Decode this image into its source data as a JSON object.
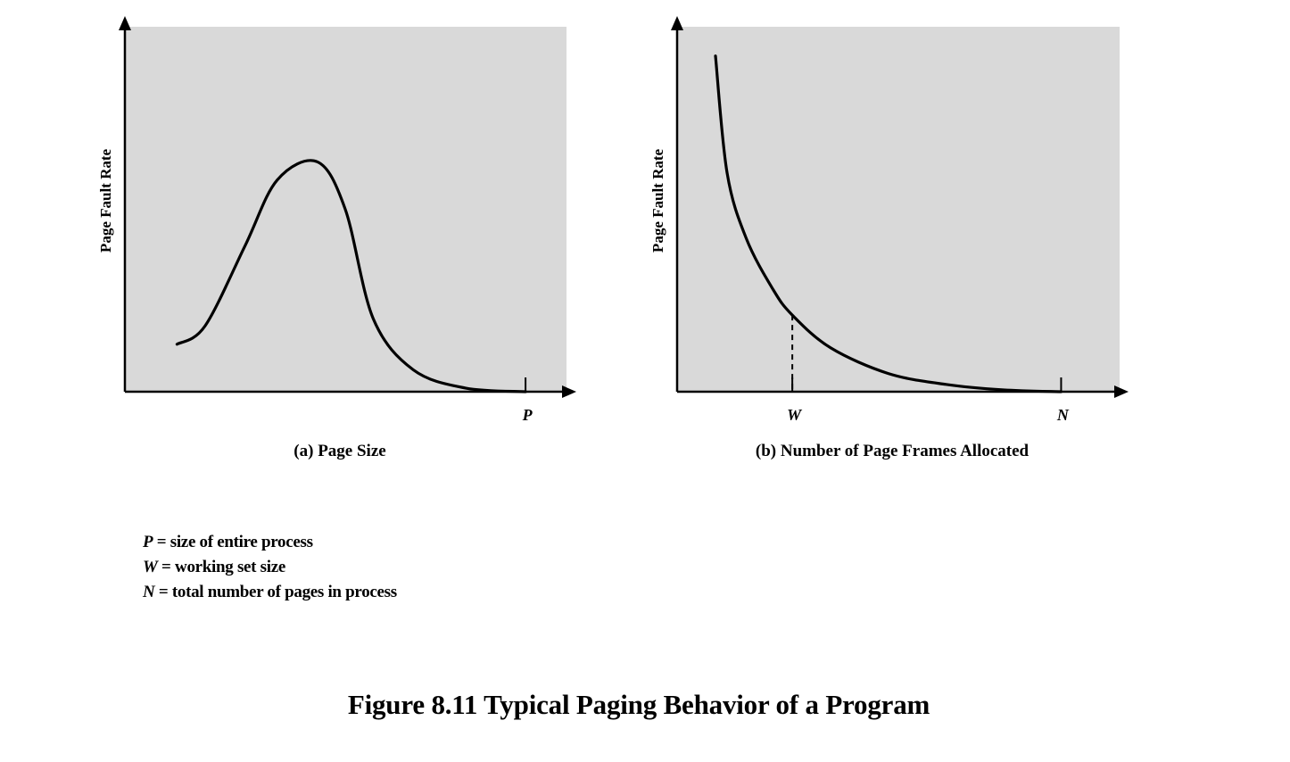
{
  "figure_title": "Figure 8.11  Typical Paging Behavior of a Program",
  "colors": {
    "plot_background": "#d9d9d9",
    "line": "#000000"
  },
  "chart_data": [
    {
      "type": "line",
      "caption": "(a) Page Size",
      "ylabel": "Page Fault Rate",
      "xlabel": "",
      "x_ticks": [
        {
          "label": "P",
          "x": 1.0
        }
      ],
      "xlim": [
        0,
        1.1
      ],
      "ylim": [
        0,
        1
      ],
      "grid": false,
      "series": [
        {
          "points": [
            [
              0.13,
              0.13
            ],
            [
              0.2,
              0.18
            ],
            [
              0.3,
              0.4
            ],
            [
              0.38,
              0.58
            ],
            [
              0.48,
              0.63
            ],
            [
              0.55,
              0.5
            ],
            [
              0.62,
              0.2
            ],
            [
              0.72,
              0.06
            ],
            [
              0.85,
              0.01
            ],
            [
              1.0,
              0.0
            ]
          ]
        }
      ]
    },
    {
      "type": "line",
      "caption": "(b) Number of Page Frames Allocated",
      "ylabel": "Page Fault Rate",
      "xlabel": "",
      "x_ticks": [
        {
          "label": "W",
          "x": 0.3
        },
        {
          "label": "N",
          "x": 1.0
        }
      ],
      "xlim": [
        0,
        1.15
      ],
      "ylim": [
        0,
        1
      ],
      "grid": false,
      "reference_line": {
        "x": 0.3,
        "style": "dashed"
      },
      "series": [
        {
          "points": [
            [
              0.1,
              0.92
            ],
            [
              0.13,
              0.6
            ],
            [
              0.18,
              0.42
            ],
            [
              0.25,
              0.28
            ],
            [
              0.3,
              0.21
            ],
            [
              0.4,
              0.12
            ],
            [
              0.55,
              0.05
            ],
            [
              0.7,
              0.02
            ],
            [
              0.85,
              0.005
            ],
            [
              1.0,
              0.0
            ]
          ]
        }
      ]
    }
  ],
  "legend": [
    {
      "symbol": "P",
      "text": " = size of entire process"
    },
    {
      "symbol": "W",
      "text": " =  working set size"
    },
    {
      "symbol": "N",
      "text": " = total number of pages in process"
    }
  ]
}
